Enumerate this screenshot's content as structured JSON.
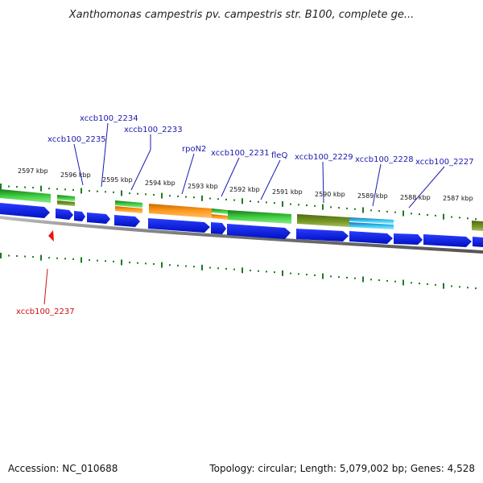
{
  "title": "Xanthomonas campestris pv. campestris str. B100, complete ge...",
  "footer": {
    "accession": "Accession: NC_010688",
    "summary": "Topology: circular; Length: 5,079,002 bp; Genes: 4,528"
  },
  "scale_ticks": [
    "2597 kbp",
    "2596 kbp",
    "2595 kbp",
    "2594 kbp",
    "2593 kbp",
    "2592 kbp",
    "2591 kbp",
    "2590 kbp",
    "2589 kbp",
    "2588 kbp",
    "2587 kbp"
  ],
  "gene_labels": [
    {
      "text": "xccb100_2234",
      "color": "#1a1ab0"
    },
    {
      "text": "xccb100_2235",
      "color": "#1a1ab0"
    },
    {
      "text": "xccb100_2233",
      "color": "#1a1ab0"
    },
    {
      "text": "rpoN2",
      "color": "#1a1ab0"
    },
    {
      "text": "xccb100_2231",
      "color": "#1a1ab0"
    },
    {
      "text": "fleQ",
      "color": "#1a1ab0"
    },
    {
      "text": "xccb100_2229",
      "color": "#1a1ab0"
    },
    {
      "text": "xccb100_2228",
      "color": "#1a1ab0"
    },
    {
      "text": "xccb100_2227",
      "color": "#1a1ab0"
    },
    {
      "text": "xccb100_2237",
      "color": "#cc1111"
    }
  ],
  "colors": {
    "cds_blue": "#0a1fe0",
    "gene_green": "#2fbf2f",
    "gene_olive": "#6b8a1e",
    "gene_orange": "#f08a10",
    "gene_cyan": "#2ab8e8",
    "tick_green": "#1f7a1f",
    "backbone": "#8a8a8a",
    "marker_red": "#ee1111"
  }
}
